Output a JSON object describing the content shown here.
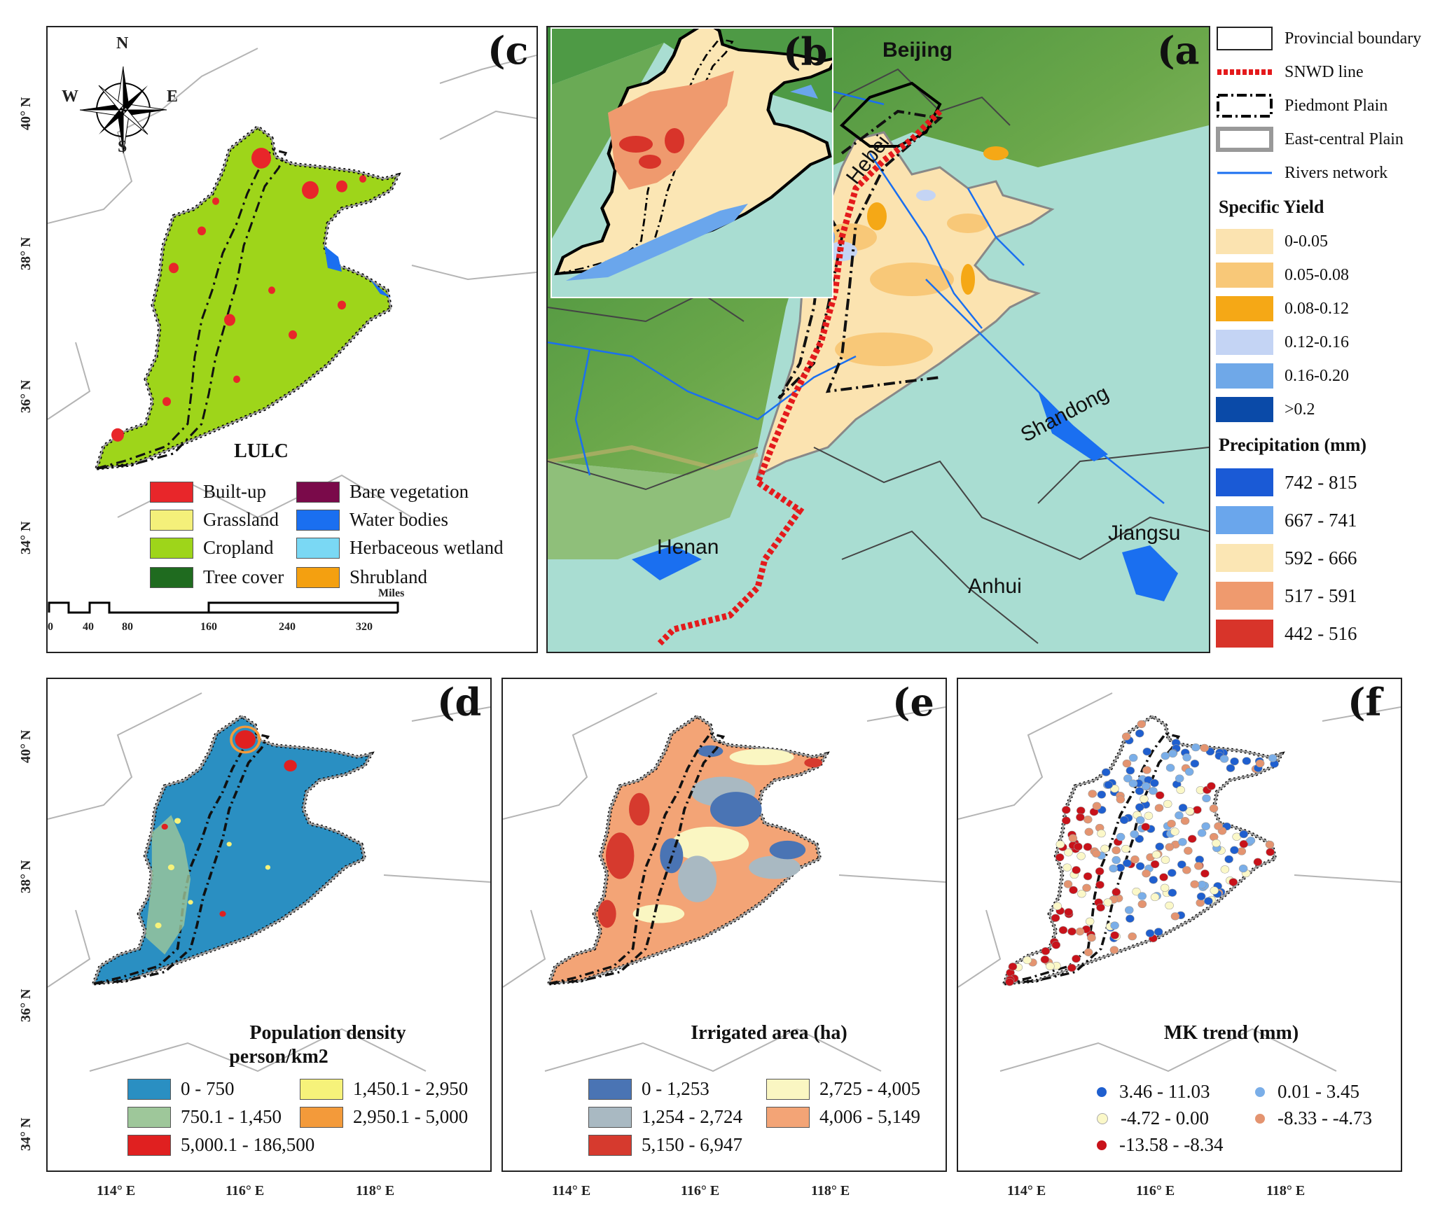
{
  "panels": {
    "a": {
      "label": "(a",
      "places": [
        "Beijing",
        "Hebei",
        "Shandong",
        "Henan",
        "Anhui",
        "Jiangsu"
      ]
    },
    "b": {
      "label": "(b"
    },
    "c": {
      "label": "(c",
      "title": "LULC",
      "compass": {
        "n": "N",
        "s": "S",
        "e": "E",
        "w": "W"
      },
      "legend": [
        {
          "label": "Built-up",
          "color": "#e8262a"
        },
        {
          "label": "Bare vegetation",
          "color": "#7a0a4a"
        },
        {
          "label": "Grassland",
          "color": "#f4f07a"
        },
        {
          "label": "Water bodies",
          "color": "#1a6ff0"
        },
        {
          "label": "Cropland",
          "color": "#9ed51a"
        },
        {
          "label": "Herbaceous wetland",
          "color": "#7ad8f4"
        },
        {
          "label": "Tree cover",
          "color": "#1f6b1f"
        },
        {
          "label": "Shrubland",
          "color": "#f4a010"
        }
      ],
      "scalebar": {
        "ticks": [
          "0",
          "40",
          "80",
          "160",
          "240",
          "320"
        ],
        "unit": "Miles"
      },
      "lat_ticks": [
        "40° N",
        "38° N",
        "36° N",
        "34° N"
      ]
    },
    "d": {
      "label": "(d",
      "title_line1": "Population density",
      "title_line2": "person/km2",
      "legend": [
        {
          "label": "0 - 750",
          "color": "#2a8fc2"
        },
        {
          "label": "1,450.1 - 2,950",
          "color": "#f6f27a"
        },
        {
          "label": "750.1 - 1,450",
          "color": "#9ec79a"
        },
        {
          "label": "2,950.1 - 5,000",
          "color": "#f39a3a"
        },
        {
          "label": "5,000.1 - 186,500",
          "color": "#e02020"
        }
      ],
      "lat_ticks": [
        "40° N",
        "38° N",
        "36° N",
        "34° N"
      ],
      "lon_ticks": [
        "114° E",
        "116° E",
        "118° E"
      ]
    },
    "e": {
      "label": "(e",
      "title": "Irrigated area (ha)",
      "legend": [
        {
          "label": "0 - 1,253",
          "color": "#4a74b4"
        },
        {
          "label": "2,725 - 4,005",
          "color": "#faf6c2"
        },
        {
          "label": "1,254 - 2,724",
          "color": "#a9b9c2"
        },
        {
          "label": "4,006 - 5,149",
          "color": "#f3a476"
        },
        {
          "label": "5,150 - 6,947",
          "color": "#d63a2e"
        }
      ],
      "lon_ticks": [
        "114° E",
        "116° E",
        "118° E"
      ]
    },
    "f": {
      "label": "(f",
      "title": "MK trend (mm)",
      "legend": [
        {
          "label": "3.46 - 11.03",
          "color": "#1f5fcf"
        },
        {
          "label": "0.01 - 3.45",
          "color": "#7aaee8"
        },
        {
          "label": "-4.72 - 0.00",
          "color": "#fbf8c8"
        },
        {
          "label": "-8.33 - -4.73",
          "color": "#e49470"
        },
        {
          "label": "-13.58 - -8.34",
          "color": "#c8121a"
        }
      ],
      "lon_ticks": [
        "114° E",
        "116° E",
        "118° E"
      ]
    }
  },
  "legend_a": {
    "lines": [
      {
        "label": "Provincial boundary"
      },
      {
        "label": "SNWD line"
      },
      {
        "label": "Piedmont Plain"
      },
      {
        "label": "East-central Plain"
      },
      {
        "label": "Rivers network"
      }
    ],
    "specific_yield_title": "Specific Yield",
    "specific_yield": [
      {
        "label": "0-0.05",
        "color": "#fbe3b0"
      },
      {
        "label": "0.05-0.08",
        "color": "#f8c878"
      },
      {
        "label": "0.08-0.12",
        "color": "#f5a816"
      },
      {
        "label": "0.12-0.16",
        "color": "#c4d4f4"
      },
      {
        "label": "0.16-0.20",
        "color": "#6fa8e8"
      },
      {
        "label": ">0.2",
        "color": "#0a4aa8"
      }
    ],
    "precip_title": "Precipitation (mm)",
    "precip": [
      {
        "label": "742 - 815",
        "color": "#1a5ad6"
      },
      {
        "label": "667 - 741",
        "color": "#6aa6ec"
      },
      {
        "label": "592 - 666",
        "color": "#fbe6b4"
      },
      {
        "label": "517 - 591",
        "color": "#ef9a6e"
      },
      {
        "label": "442 - 516",
        "color": "#d8342a"
      }
    ]
  }
}
